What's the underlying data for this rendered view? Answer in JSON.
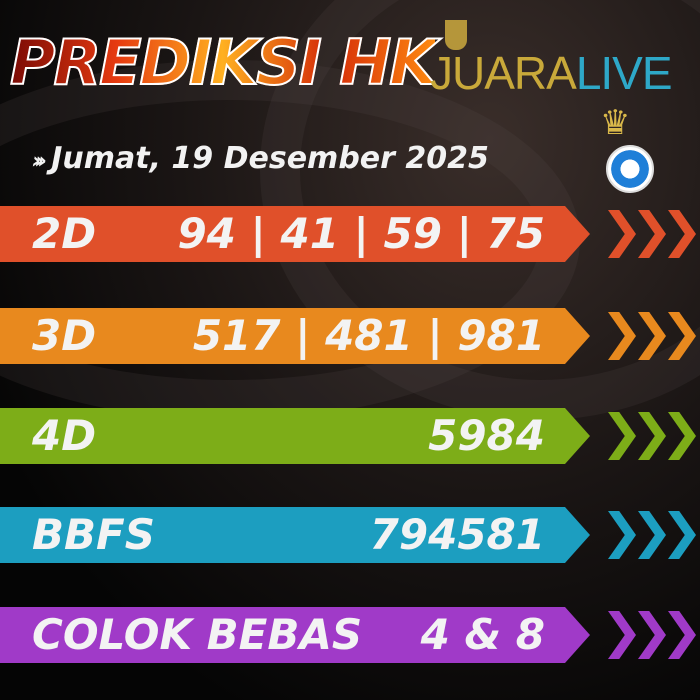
{
  "header": {
    "title": "PREDIKSI HK",
    "brand_part1": "JUARA",
    "brand_part2": "LIVE",
    "brand_icon": "trophy-icon",
    "badge_icon": "crown-soccer-ball-icon"
  },
  "date": {
    "chevrons": "›››",
    "text": "Jumat, 19 Desember 2025"
  },
  "rows": [
    {
      "label": "2D",
      "value": "94 | 41 | 59 | 75",
      "color": "#e0502a"
    },
    {
      "label": "3D",
      "value": "517 | 481 | 981",
      "color": "#e8891e"
    },
    {
      "label": "4D",
      "value": "5984",
      "color": "#7dad18"
    },
    {
      "label": "BBFS",
      "value": "794581",
      "color": "#1c9ec0"
    },
    {
      "label": "COLOK BEBAS",
      "value": "4 & 8",
      "color": "#a03ac8"
    }
  ]
}
